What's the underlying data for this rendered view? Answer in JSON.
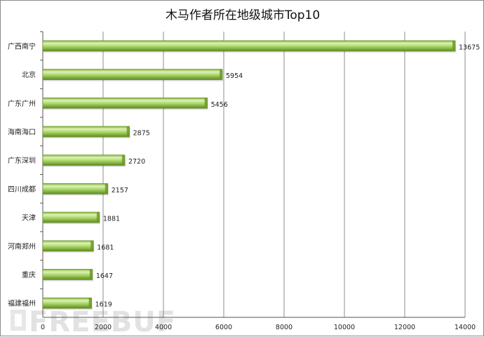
{
  "chart_data": {
    "type": "bar",
    "orientation": "horizontal",
    "title": "木马作者所在地级城市Top10",
    "categories": [
      "广西南宁",
      "北京",
      "广东广州",
      "海南海口",
      "广东深圳",
      "四川成都",
      "天津",
      "河南郑州",
      "重庆",
      "福建福州"
    ],
    "values": [
      13675,
      5954,
      5456,
      2875,
      2720,
      2157,
      1881,
      1681,
      1647,
      1619
    ],
    "xlim": [
      0,
      14000
    ],
    "xticks": [
      0,
      2000,
      4000,
      6000,
      8000,
      10000,
      12000,
      14000
    ],
    "xlabel": "",
    "ylabel": "",
    "grid": true,
    "legend": "none",
    "data_labels": true,
    "bar_style": "3d-cylinder",
    "colors": {
      "bar_main": "#9bcc52",
      "bar_light": "#dff2b6",
      "bar_dark": "#5f8a1e",
      "bar_end": "#6d9a28",
      "grid": "#8c8c8c"
    }
  },
  "watermark": {
    "text": "FREEBUF",
    "icon": "freebuf-logo-icon"
  }
}
